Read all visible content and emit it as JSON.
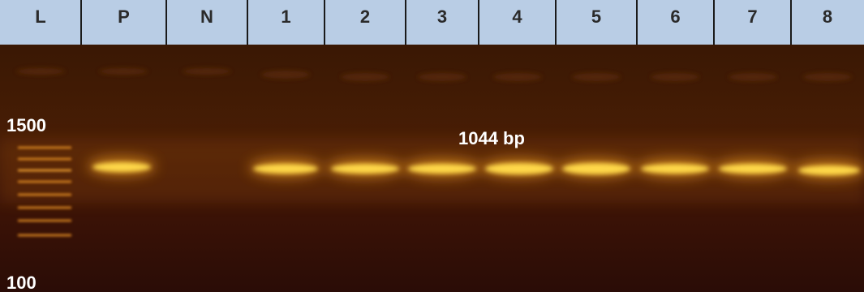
{
  "lanes": [
    "L",
    "P",
    "N",
    "1",
    "2",
    "3",
    "4",
    "5",
    "6",
    "7",
    "8"
  ],
  "markers": [
    "1500",
    "100"
  ],
  "annotation": "1044 bp"
}
